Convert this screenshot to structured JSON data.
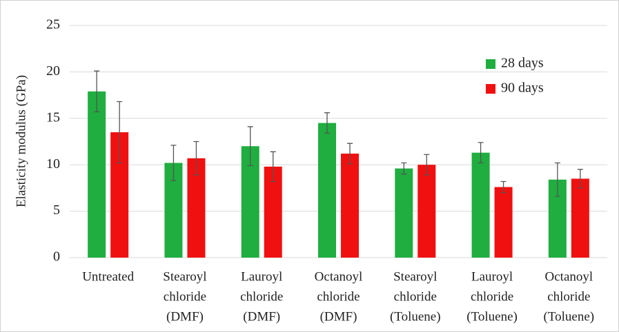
{
  "chart_data": {
    "type": "bar",
    "y_label": "Elasticity modulus (GPa)",
    "categories": [
      [
        "Untreated"
      ],
      [
        "Stearoyl",
        "chloride",
        "(DMF)"
      ],
      [
        "Lauroyl",
        "chloride",
        "(DMF)"
      ],
      [
        "Octanoyl",
        "chloride",
        "(DMF)"
      ],
      [
        "Stearoyl",
        "chloride",
        "(Toluene)"
      ],
      [
        "Lauroyl",
        "chloride",
        "(Toluene)"
      ],
      [
        "Octanoyl",
        "chloride",
        "(Toluene)"
      ]
    ],
    "series": [
      {
        "name": "28 days",
        "color": "#1fae3f",
        "values": [
          17.9,
          10.2,
          12.0,
          14.5,
          9.6,
          11.3,
          8.4
        ],
        "errors": [
          2.2,
          1.9,
          2.1,
          1.1,
          0.6,
          1.1,
          1.8
        ]
      },
      {
        "name": "90 days",
        "color": "#f01010",
        "values": [
          13.5,
          10.7,
          9.8,
          11.2,
          10.0,
          7.6,
          8.5
        ],
        "errors": [
          3.3,
          1.8,
          1.6,
          1.1,
          1.1,
          0.6,
          1.0
        ]
      }
    ],
    "ylim": [
      0,
      25
    ],
    "yticks": [
      0,
      5,
      10,
      15,
      20,
      25
    ],
    "grid": true,
    "legend": "upper right"
  }
}
